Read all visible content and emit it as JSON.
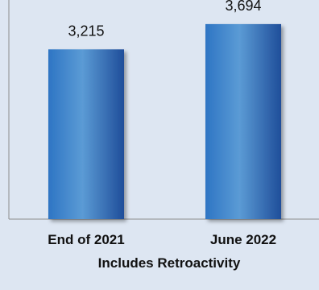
{
  "chart_data": {
    "type": "bar",
    "categories": [
      "End of 2021",
      "June 2022"
    ],
    "values": [
      3215,
      3694
    ],
    "value_labels": [
      "3,215",
      "3,694"
    ],
    "xlabel": "Includes Retroactivity",
    "ylabel": "",
    "ylim": [
      0,
      4150
    ],
    "grid": false,
    "legend": "none"
  },
  "colors": {
    "background": "#dde6f2",
    "bar_light": "#5b9bd5",
    "bar_mid": "#2e75c4",
    "bar_dark": "#1f4e9a",
    "axis": "#8c8c8c"
  }
}
